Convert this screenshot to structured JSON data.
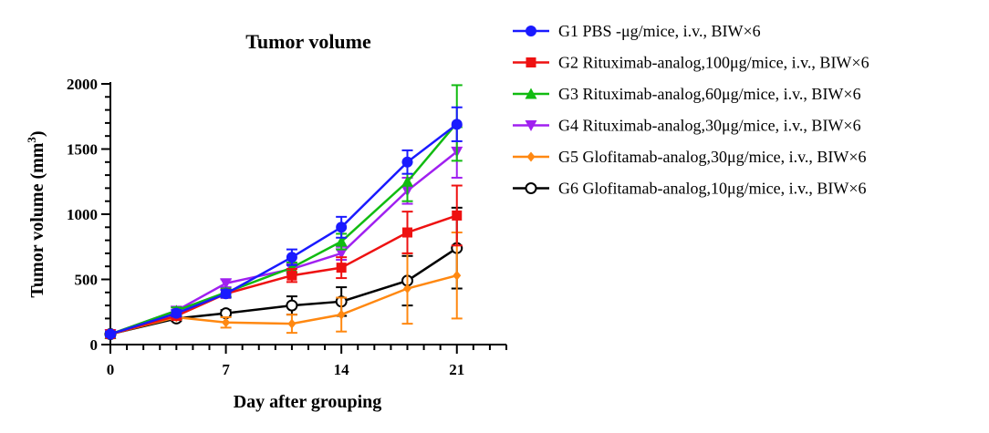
{
  "chart_data": {
    "type": "line",
    "title": "Tumor volume",
    "xlabel": "Day after grouping",
    "ylabel": "Tumor volume (mm",
    "ylabel_sup": "3",
    "ylabel_close": ")",
    "xlim": [
      0,
      24
    ],
    "ylim": [
      0,
      2000
    ],
    "x_ticks": [
      0,
      7,
      14,
      21
    ],
    "y_ticks": [
      0,
      500,
      1000,
      1500,
      2000
    ],
    "grid": false,
    "legend_position": "right",
    "series": [
      {
        "name": "G1 PBS -μg/mice, i.v., BIW×6",
        "color": "#1a1aff",
        "marker": "circle",
        "x": [
          0,
          4,
          7,
          11,
          14,
          18,
          21
        ],
        "y": [
          80,
          240,
          390,
          670,
          900,
          1400,
          1690
        ],
        "err": [
          20,
          25,
          30,
          60,
          80,
          90,
          130
        ]
      },
      {
        "name": "G2 Rituximab-analog,100μg/mice, i.v., BIW×6",
        "color": "#ee1111",
        "marker": "square",
        "x": [
          0,
          4,
          7,
          11,
          14,
          18,
          21
        ],
        "y": [
          80,
          220,
          390,
          530,
          590,
          860,
          990
        ],
        "err": [
          20,
          20,
          30,
          50,
          80,
          160,
          230
        ]
      },
      {
        "name": "G3 Rituximab-analog,60μg/mice, i.v., BIW×6",
        "color": "#11bb11",
        "marker": "triangle-up",
        "x": [
          0,
          4,
          7,
          11,
          14,
          18,
          21
        ],
        "y": [
          80,
          260,
          400,
          590,
          790,
          1250,
          1700
        ],
        "err": [
          20,
          25,
          30,
          40,
          60,
          150,
          290
        ]
      },
      {
        "name": "G4 Rituximab-analog,30μg/mice, i.v., BIW×6",
        "color": "#a020f0",
        "marker": "triangle-down",
        "x": [
          0,
          4,
          7,
          11,
          14,
          18,
          21
        ],
        "y": [
          80,
          260,
          470,
          580,
          700,
          1180,
          1480
        ],
        "err": [
          20,
          25,
          30,
          40,
          50,
          100,
          200
        ]
      },
      {
        "name": "G5 Glofitamab-analog,30μg/mice, i.v., BIW×6",
        "color": "#ff8811",
        "marker": "diamond",
        "x": [
          0,
          4,
          7,
          11,
          14,
          18,
          21
        ],
        "y": [
          80,
          210,
          170,
          160,
          230,
          430,
          530
        ],
        "err": [
          20,
          20,
          40,
          70,
          130,
          270,
          330
        ]
      },
      {
        "name": "G6 Glofitamab-analog,10μg/mice, i.v., BIW×6",
        "color": "#000000",
        "marker": "circle-open",
        "x": [
          0,
          4,
          7,
          11,
          14,
          18,
          21
        ],
        "y": [
          80,
          200,
          240,
          300,
          330,
          490,
          740
        ],
        "err": [
          20,
          20,
          25,
          70,
          110,
          190,
          310
        ]
      }
    ]
  }
}
